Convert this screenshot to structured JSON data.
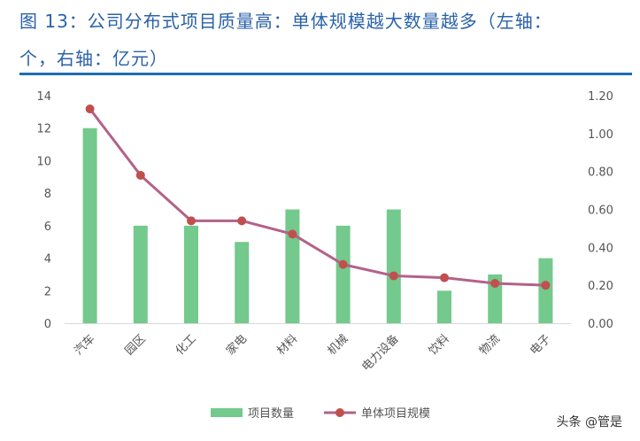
{
  "title_line1": "图 13：公司分布式项目质量高：单体规模越大数量越多（左轴：",
  "title_line2": "个，右轴：亿元）",
  "watermark": "头条 @管是",
  "colors": {
    "bar": "#74c98c",
    "line": "#b3628a",
    "marker": "#c0504d",
    "title": "#2a62a8",
    "rule": "#1c6db3"
  },
  "chart_data": {
    "type": "bar+line",
    "categories": [
      "汽车",
      "园区",
      "化工",
      "家电",
      "材料",
      "机械",
      "电力设备",
      "饮料",
      "物流",
      "电子"
    ],
    "series": [
      {
        "name": "项目数量",
        "type": "bar",
        "axis": "left",
        "values": [
          12,
          6,
          6,
          5,
          7,
          6,
          7,
          2,
          3,
          4
        ]
      },
      {
        "name": "单体项目规模",
        "type": "line",
        "axis": "right",
        "values": [
          1.13,
          0.78,
          0.54,
          0.54,
          0.47,
          0.31,
          0.25,
          0.24,
          0.21,
          0.2
        ]
      }
    ],
    "left_axis": {
      "ylim": [
        0,
        14
      ],
      "ticks": [
        "0",
        "2",
        "4",
        "6",
        "8",
        "10",
        "12",
        "14"
      ]
    },
    "right_axis": {
      "ylim": [
        0,
        1.2
      ],
      "ticks": [
        "0.00",
        "0.20",
        "0.40",
        "0.60",
        "0.80",
        "1.00",
        "1.20"
      ]
    },
    "legend": [
      "项目数量",
      "单体项目规模"
    ],
    "legend_position": "bottom",
    "grid": false
  }
}
